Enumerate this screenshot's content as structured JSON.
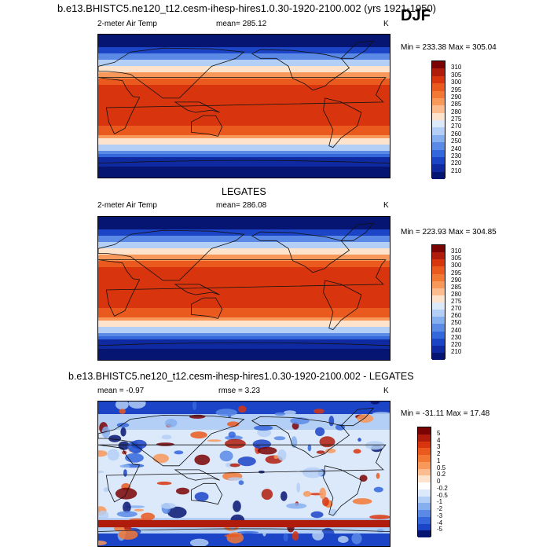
{
  "figure": {
    "main_title": "b.e13.BHISTC5.ne120_t12.cesm-ihesp-hires1.0.30-1920-2100.002 (yrs 1921-1950)",
    "season": "DJF"
  },
  "panels": [
    {
      "id": "model",
      "heading": "",
      "left_label": "2-meter Air Temp",
      "center_label": "mean= 285.12",
      "right_label": "K",
      "minmax": "Min = 233.38 Max = 305.04",
      "kind": "temp",
      "colorbar": {
        "labels": [
          "310",
          "305",
          "300",
          "295",
          "290",
          "285",
          "280",
          "275",
          "270",
          "260",
          "250",
          "240",
          "230",
          "220",
          "210"
        ],
        "colors": [
          "#7a0403",
          "#b01c0c",
          "#d8350f",
          "#ea5a1e",
          "#f37834",
          "#f8985a",
          "#fbbd90",
          "#fde3cc",
          "#dce9fb",
          "#b4cff5",
          "#86aff0",
          "#5b8ae6",
          "#3466dc",
          "#1c44c6",
          "#0f2aa0",
          "#061571"
        ]
      }
    },
    {
      "id": "obs",
      "heading": "LEGATES",
      "left_label": "2-meter Air Temp",
      "center_label": "mean= 286.08",
      "right_label": "K",
      "minmax": "Min = 223.93 Max = 304.85",
      "kind": "temp",
      "colorbar": {
        "labels": [
          "310",
          "305",
          "300",
          "295",
          "290",
          "285",
          "280",
          "275",
          "270",
          "260",
          "250",
          "240",
          "230",
          "220",
          "210"
        ],
        "colors": [
          "#7a0403",
          "#b01c0c",
          "#d8350f",
          "#ea5a1e",
          "#f37834",
          "#f8985a",
          "#fbbd90",
          "#fde3cc",
          "#dce9fb",
          "#b4cff5",
          "#86aff0",
          "#5b8ae6",
          "#3466dc",
          "#1c44c6",
          "#0f2aa0",
          "#061571"
        ]
      }
    },
    {
      "id": "diff",
      "heading": "b.e13.BHISTC5.ne120_t12.cesm-ihesp-hires1.0.30-1920-2100.002 - LEGATES",
      "left_label": "mean =  -0.97",
      "center_label": "rmse =   3.23",
      "right_label": "K",
      "minmax": "Min = -31.11 Max =  17.48",
      "kind": "diff",
      "colorbar": {
        "labels": [
          "5",
          "4",
          "3",
          "2",
          "1",
          "0.5",
          "0.2",
          "0",
          "-0.2",
          "-0.5",
          "-1",
          "-2",
          "-3",
          "-4",
          "-5"
        ],
        "colors": [
          "#7a0403",
          "#b01c0c",
          "#d8350f",
          "#ea5a1e",
          "#f37834",
          "#f8985a",
          "#fbbd90",
          "#fde3cc",
          "#ffffff",
          "#dce9fb",
          "#b4cff5",
          "#86aff0",
          "#5b8ae6",
          "#3466dc",
          "#1c44c6",
          "#061571"
        ]
      }
    }
  ]
}
